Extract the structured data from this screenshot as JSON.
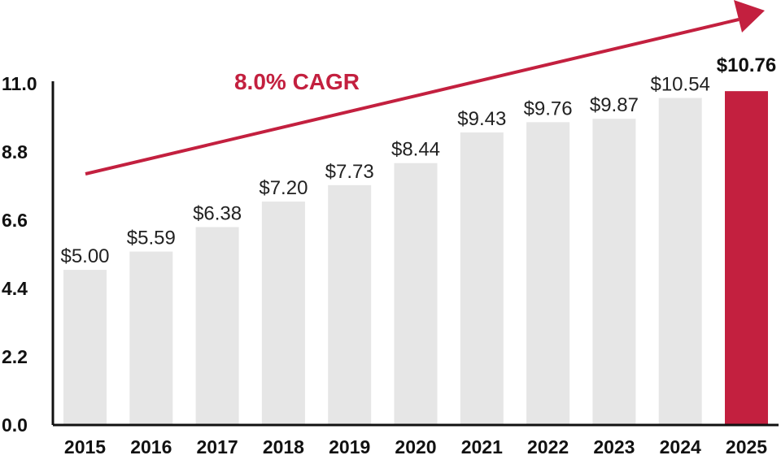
{
  "chart_data": {
    "type": "bar",
    "categories": [
      "2015",
      "2016",
      "2017",
      "2018",
      "2019",
      "2020",
      "2021",
      "2022",
      "2023",
      "2024",
      "2025"
    ],
    "values": [
      5.0,
      5.59,
      6.38,
      7.2,
      7.73,
      8.44,
      9.43,
      9.76,
      9.87,
      10.54,
      10.76
    ],
    "data_labels": [
      "$5.00",
      "$5.59",
      "$6.38",
      "$7.20",
      "$7.73",
      "$8.44",
      "$9.43",
      "$9.76",
      "$9.87",
      "$10.54",
      "$10.76"
    ],
    "highlight_index": 10,
    "yticks": [
      "0.0",
      "2.2",
      "4.4",
      "6.6",
      "8.8",
      "11.0"
    ],
    "ylim": [
      0,
      11.0
    ],
    "grid": false,
    "annotation": "8.0% CAGR",
    "colors": {
      "bar": "#e6e6e6",
      "highlight": "#c3203f",
      "accent": "#c3203f",
      "axis": "#111111"
    }
  }
}
